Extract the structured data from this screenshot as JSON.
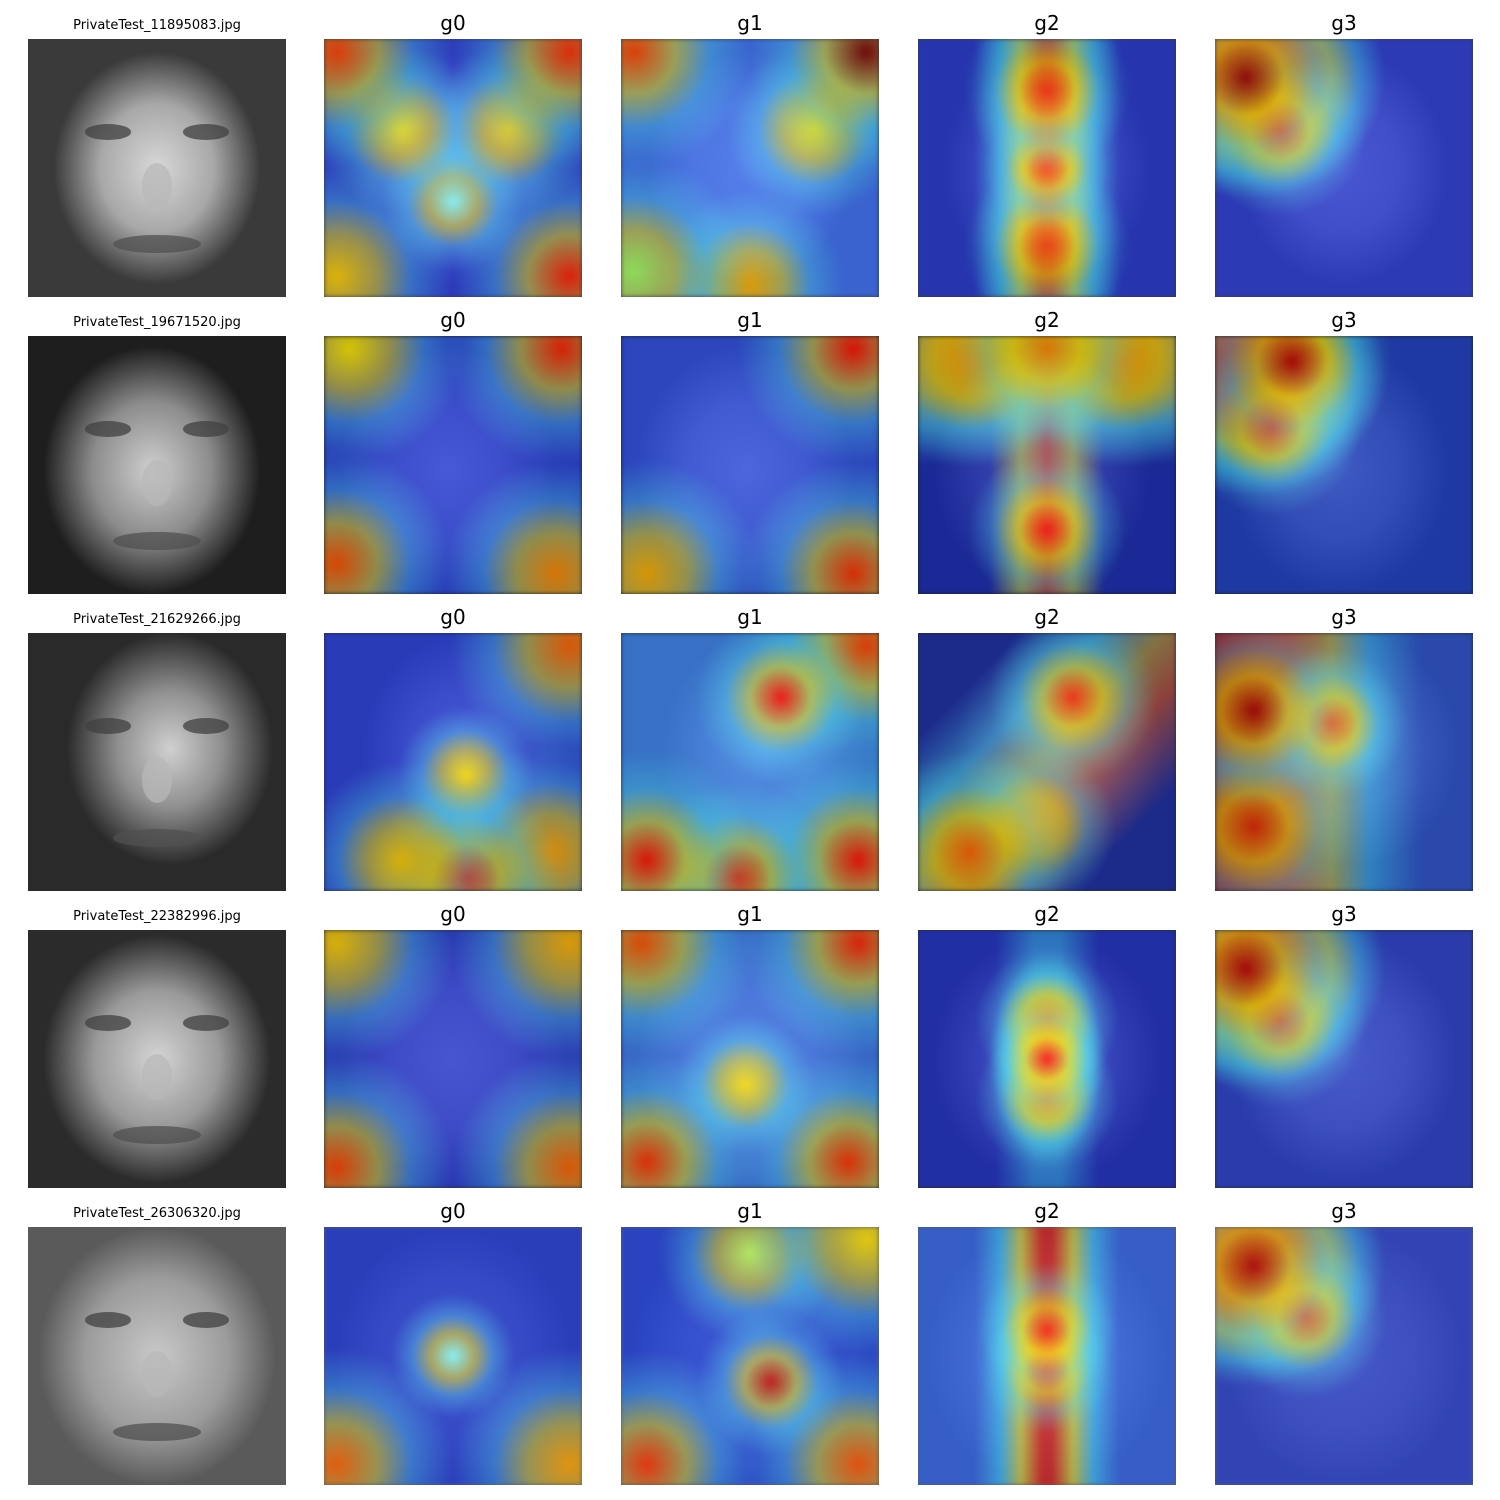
{
  "rows": [
    {
      "filename": "PrivateTest_11895083.jpg",
      "maps": [
        {
          "label": "g0",
          "hot": [
            [
              0.05,
              0.05,
              "#ff3b00"
            ],
            [
              0.95,
              0.05,
              "#ff2a00"
            ],
            [
              0.3,
              0.35,
              "#ffe000"
            ],
            [
              0.72,
              0.35,
              "#ffd000"
            ],
            [
              0.5,
              0.63,
              "#7cf8ff"
            ],
            [
              0.05,
              0.92,
              "#ffcc00"
            ],
            [
              0.95,
              0.92,
              "#ff1a00"
            ]
          ],
          "base": "#2a3bd8"
        },
        {
          "label": "g1",
          "hot": [
            [
              0.05,
              0.05,
              "#ff4000"
            ],
            [
              0.95,
              0.05,
              "#7a0000"
            ],
            [
              0.05,
              0.9,
              "#a0ff60"
            ],
            [
              0.5,
              0.95,
              "#ffb000"
            ],
            [
              0.75,
              0.35,
              "#ffea00"
            ]
          ],
          "base": "#3a6cf0"
        },
        {
          "label": "g2",
          "hot": [
            [
              0.5,
              0.2,
              "#ff2000"
            ],
            [
              0.5,
              0.5,
              "#ff3000"
            ],
            [
              0.5,
              0.8,
              "#ff3500"
            ]
          ],
          "base": "#2235c8",
          "stripe": "vertical"
        },
        {
          "label": "g3",
          "hot": [
            [
              0.12,
              0.15,
              "#a00000"
            ],
            [
              0.25,
              0.35,
              "#ff1800"
            ]
          ],
          "base": "#2a3bd0",
          "blob": "topleft"
        }
      ]
    },
    {
      "filename": "PrivateTest_19671520.jpg",
      "maps": [
        {
          "label": "g0",
          "hot": [
            [
              0.1,
              0.05,
              "#ffe800"
            ],
            [
              0.92,
              0.05,
              "#ff2000"
            ],
            [
              0.05,
              0.88,
              "#ff5000"
            ],
            [
              0.9,
              0.92,
              "#ff8800"
            ]
          ],
          "base": "#2a40d8"
        },
        {
          "label": "g1",
          "hot": [
            [
              0.9,
              0.05,
              "#ff1000"
            ],
            [
              0.1,
              0.92,
              "#ffb000"
            ],
            [
              0.9,
              0.92,
              "#ff3000"
            ]
          ],
          "base": "#3050e0"
        },
        {
          "label": "g2",
          "hot": [
            [
              0.5,
              0.05,
              "#ff8800"
            ],
            [
              0.5,
              0.75,
              "#ff0000"
            ],
            [
              0.2,
              0.1,
              "#ffa000"
            ],
            [
              0.8,
              0.1,
              "#ffa000"
            ]
          ],
          "base": "#1a2cb0",
          "stripe": "top-v"
        },
        {
          "label": "g3",
          "hot": [
            [
              0.3,
              0.1,
              "#c00000"
            ],
            [
              0.22,
              0.35,
              "#ff2000"
            ]
          ],
          "base": "#2040c0",
          "blob": "topleft"
        }
      ]
    },
    {
      "filename": "PrivateTest_21629266.jpg",
      "maps": [
        {
          "label": "g0",
          "hot": [
            [
              0.95,
              0.05,
              "#ff6000"
            ],
            [
              0.3,
              0.88,
              "#ffcc00"
            ],
            [
              0.55,
              0.95,
              "#ff1000"
            ],
            [
              0.88,
              0.85,
              "#ffa000"
            ],
            [
              0.55,
              0.55,
              "#ffe000"
            ]
          ],
          "base": "#2a3fd8"
        },
        {
          "label": "g1",
          "hot": [
            [
              0.62,
              0.25,
              "#ff0000"
            ],
            [
              0.95,
              0.05,
              "#ff4000"
            ],
            [
              0.1,
              0.88,
              "#ff1000"
            ],
            [
              0.45,
              0.95,
              "#ff2000"
            ],
            [
              0.92,
              0.88,
              "#ff1000"
            ]
          ],
          "base": "#3a80e8"
        },
        {
          "label": "g2",
          "hot": [
            [
              0.6,
              0.25,
              "#ff2000"
            ],
            [
              0.2,
              0.85,
              "#ff6000"
            ],
            [
              0.45,
              0.75,
              "#ffb000"
            ]
          ],
          "base": "#1a2aa0",
          "stripe": "diag"
        },
        {
          "label": "g3",
          "hot": [
            [
              0.15,
              0.3,
              "#b00000"
            ],
            [
              0.15,
              0.75,
              "#e02000"
            ],
            [
              0.45,
              0.35,
              "#ff4000"
            ]
          ],
          "base": "#2a50c8",
          "blob": "left"
        }
      ]
    },
    {
      "filename": "PrivateTest_22382996.jpg",
      "maps": [
        {
          "label": "g0",
          "hot": [
            [
              0.05,
              0.05,
              "#ffcc00"
            ],
            [
              0.95,
              0.05,
              "#ffb000"
            ],
            [
              0.05,
              0.92,
              "#ff4000"
            ],
            [
              0.95,
              0.92,
              "#ff6000"
            ]
          ],
          "base": "#2a3bd0"
        },
        {
          "label": "g1",
          "hot": [
            [
              0.08,
              0.05,
              "#ff5000"
            ],
            [
              0.92,
              0.05,
              "#ff2000"
            ],
            [
              0.1,
              0.9,
              "#ff3000"
            ],
            [
              0.88,
              0.9,
              "#ff3000"
            ],
            [
              0.48,
              0.6,
              "#ffe000"
            ]
          ],
          "base": "#3a70e8"
        },
        {
          "label": "g2",
          "hot": [
            [
              0.5,
              0.5,
              "#ff0000"
            ],
            [
              0.5,
              0.35,
              "#ff8800"
            ],
            [
              0.5,
              0.65,
              "#ff8800"
            ]
          ],
          "base": "#2030c0",
          "stripe": "diamond"
        },
        {
          "label": "g3",
          "hot": [
            [
              0.12,
              0.15,
              "#c00000"
            ],
            [
              0.25,
              0.35,
              "#ff2000"
            ]
          ],
          "base": "#2a40c8",
          "blob": "topleft"
        }
      ]
    },
    {
      "filename": "PrivateTest_26306320.jpg",
      "maps": [
        {
          "label": "g0",
          "hot": [
            [
              0.05,
              0.92,
              "#ff6000"
            ],
            [
              0.95,
              0.92,
              "#ffa000"
            ],
            [
              0.5,
              0.5,
              "#7cf8ff"
            ]
          ],
          "base": "#2038d0"
        },
        {
          "label": "g1",
          "hot": [
            [
              0.58,
              0.6,
              "#c00000"
            ],
            [
              0.95,
              0.05,
              "#ffe000"
            ],
            [
              0.1,
              0.92,
              "#ff3000"
            ],
            [
              0.92,
              0.92,
              "#ff5000"
            ],
            [
              0.5,
              0.1,
              "#c0ff60"
            ]
          ],
          "base": "#2040d8"
        },
        {
          "label": "g2",
          "hot": [
            [
              0.5,
              0.4,
              "#ff1000"
            ],
            [
              0.5,
              0.55,
              "#ff2000"
            ]
          ],
          "base": "#3060e0",
          "stripe": "vertical"
        },
        {
          "label": "g3",
          "hot": [
            [
              0.15,
              0.15,
              "#c00000"
            ],
            [
              0.35,
              0.35,
              "#ff3000"
            ]
          ],
          "base": "#2a40c8",
          "blob": "topleft"
        }
      ]
    }
  ]
}
